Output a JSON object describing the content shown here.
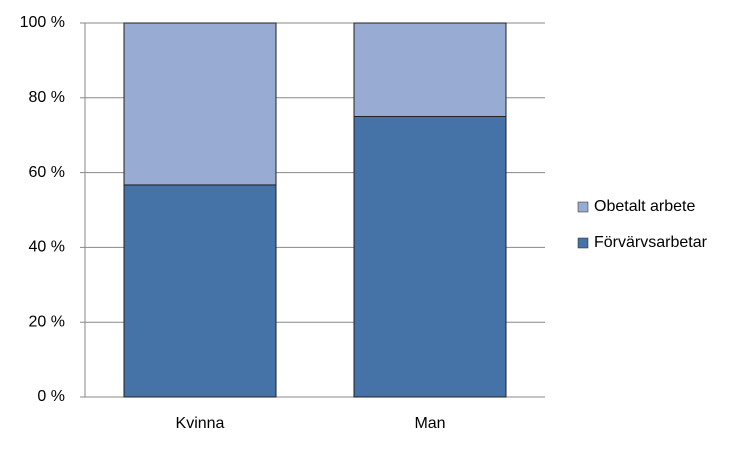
{
  "chart_data": {
    "type": "stacked_bar",
    "categories": [
      "Kvinna",
      "Man"
    ],
    "series": [
      {
        "name": "Förvärvsarbetar",
        "color": "#4573a7",
        "values": [
          56.7,
          75
        ]
      },
      {
        "name": "Obetalt arbete",
        "color": "#97abd3",
        "values": [
          43.3,
          25
        ]
      }
    ],
    "ylim": [
      0,
      100
    ],
    "yticks": [
      {
        "value": 0,
        "label": "0 %"
      },
      {
        "value": 20,
        "label": "20 %"
      },
      {
        "value": 40,
        "label": "40 %"
      },
      {
        "value": 60,
        "label": "60 %"
      },
      {
        "value": 80,
        "label": "80 %"
      },
      {
        "value": 100,
        "label": "100 %"
      }
    ],
    "grid": true,
    "legend": "right"
  }
}
